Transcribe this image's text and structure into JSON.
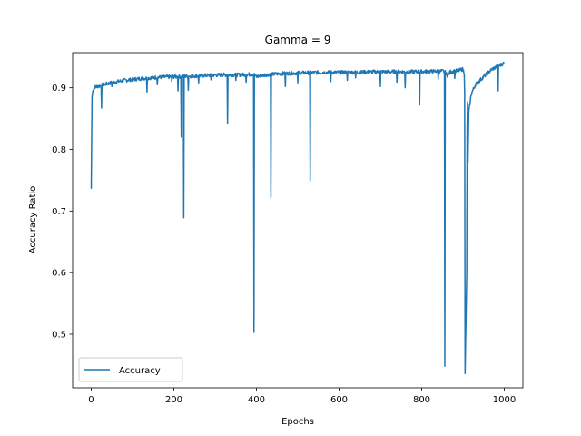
{
  "chart_data": {
    "type": "line",
    "title": "Gamma = 9",
    "xlabel": "Epochs",
    "ylabel": "Accuracy Ratio",
    "xlim": [
      -45,
      1045
    ],
    "ylim": [
      0.413,
      0.957
    ],
    "xticks": [
      0,
      200,
      400,
      600,
      800,
      1000
    ],
    "yticks": [
      0.5,
      0.6,
      0.7,
      0.8,
      0.9
    ],
    "xtick_labels": [
      "0",
      "200",
      "400",
      "600",
      "800",
      "1000"
    ],
    "ytick_labels": [
      "0.5",
      "0.6",
      "0.7",
      "0.8",
      "0.9"
    ],
    "grid": false,
    "legend_position": "lower-left",
    "series": [
      {
        "name": "Accuracy",
        "color": "#1f77b4",
        "keypoints": [
          [
            0,
            0.736
          ],
          [
            2,
            0.885
          ],
          [
            4,
            0.895
          ],
          [
            8,
            0.901
          ],
          [
            20,
            0.903
          ],
          [
            40,
            0.907
          ],
          [
            80,
            0.912
          ],
          [
            120,
            0.915
          ],
          [
            160,
            0.917
          ],
          [
            200,
            0.918
          ],
          [
            240,
            0.919
          ],
          [
            280,
            0.92
          ],
          [
            320,
            0.921
          ],
          [
            360,
            0.921
          ],
          [
            394,
            0.922
          ],
          [
            400,
            0.918
          ],
          [
            420,
            0.921
          ],
          [
            460,
            0.923
          ],
          [
            500,
            0.924
          ],
          [
            560,
            0.925
          ],
          [
            620,
            0.925
          ],
          [
            700,
            0.926
          ],
          [
            780,
            0.926
          ],
          [
            850,
            0.927
          ],
          [
            856,
            0.926
          ],
          [
            862,
            0.92
          ],
          [
            870,
            0.926
          ],
          [
            890,
            0.928
          ],
          [
            899,
            0.93
          ],
          [
            903,
            0.925
          ],
          [
            910,
            0.7
          ],
          [
            914,
            0.86
          ],
          [
            920,
            0.89
          ],
          [
            930,
            0.905
          ],
          [
            950,
            0.918
          ],
          [
            970,
            0.93
          ],
          [
            990,
            0.937
          ],
          [
            1000,
            0.94
          ]
        ],
        "dips": [
          [
            25,
            0.867
          ],
          [
            50,
            0.902
          ],
          [
            135,
            0.893
          ],
          [
            160,
            0.905
          ],
          [
            195,
            0.91
          ],
          [
            210,
            0.895
          ],
          [
            218,
            0.82
          ],
          [
            224,
            0.689
          ],
          [
            235,
            0.896
          ],
          [
            260,
            0.908
          ],
          [
            290,
            0.913
          ],
          [
            330,
            0.842
          ],
          [
            350,
            0.912
          ],
          [
            375,
            0.909
          ],
          [
            394,
            0.503
          ],
          [
            435,
            0.722
          ],
          [
            470,
            0.902
          ],
          [
            500,
            0.908
          ],
          [
            530,
            0.749
          ],
          [
            580,
            0.91
          ],
          [
            620,
            0.912
          ],
          [
            640,
            0.916
          ],
          [
            700,
            0.902
          ],
          [
            740,
            0.909
          ],
          [
            760,
            0.9
          ],
          [
            795,
            0.872
          ],
          [
            840,
            0.914
          ],
          [
            856,
            0.448
          ],
          [
            880,
            0.915
          ],
          [
            905,
            0.436
          ],
          [
            985,
            0.895
          ]
        ],
        "noise_amplitude": 0.003
      }
    ]
  }
}
